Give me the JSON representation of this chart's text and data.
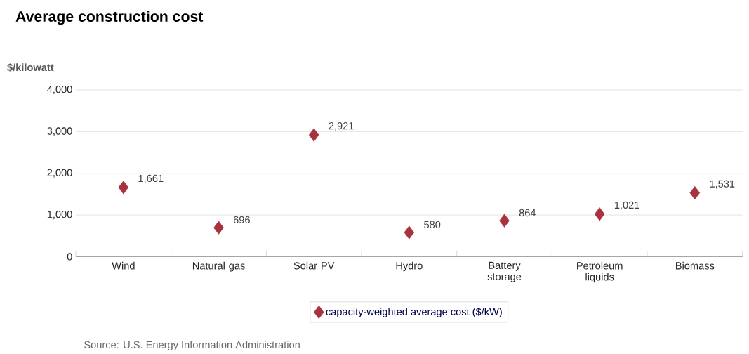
{
  "chart_data": {
    "type": "scatter",
    "title": "Average construction cost",
    "ylabel": "$/kilowatt",
    "categories": [
      "Wind",
      "Natural gas",
      "Solar PV",
      "Hydro",
      "Battery storage",
      "Petroleum liquids",
      "Biomass"
    ],
    "series": [
      {
        "name": "capacity-weighted average cost ($/kW)",
        "color": "#a8323e",
        "values": [
          1661,
          696,
          2921,
          580,
          864,
          1021,
          1531
        ],
        "value_labels": [
          "1,661",
          "696",
          "2,921",
          "580",
          "864",
          "1,021",
          "1,531"
        ]
      }
    ],
    "ylim": [
      0,
      4000
    ],
    "yticks": [
      {
        "value": 0,
        "label": "0"
      },
      {
        "value": 1000,
        "label": "1,000"
      },
      {
        "value": 2000,
        "label": "2,000"
      },
      {
        "value": 3000,
        "label": "3,000"
      },
      {
        "value": 4000,
        "label": "4,000"
      }
    ],
    "grid": "y",
    "legend": "bottom",
    "marker": "diamond",
    "annotations": [
      "Source: U.S. Energy Information Administration"
    ]
  }
}
